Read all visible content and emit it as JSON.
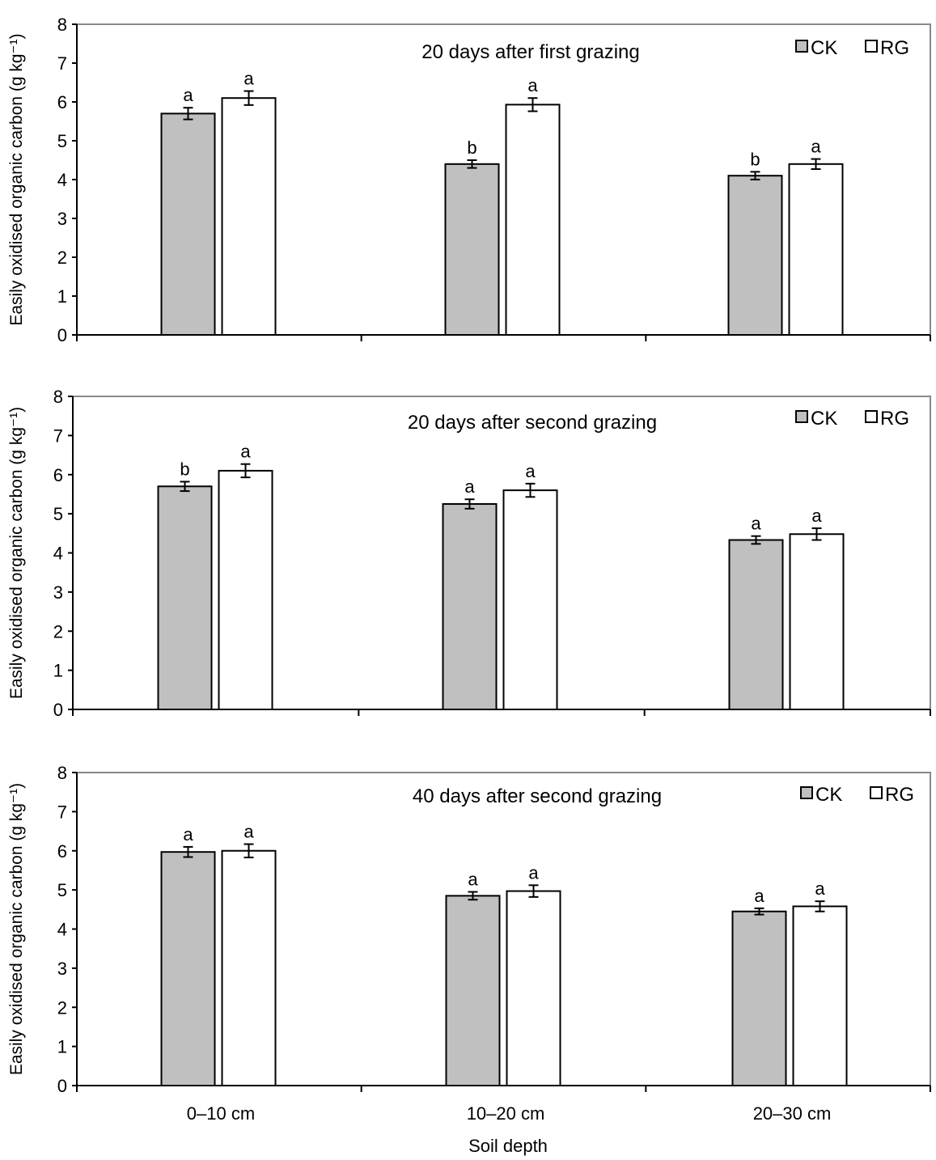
{
  "figure": {
    "xlabel": "Soil depth",
    "categories": [
      "0–10 cm",
      "10–20 cm",
      "20–30 cm"
    ]
  },
  "chart_data": [
    {
      "type": "bar",
      "title": "20 days after first grazing",
      "ylabel": "Easily oxidised organic carbon (g kg⁻¹)",
      "ylim": [
        0,
        8
      ],
      "yticks": [
        0,
        1,
        2,
        3,
        4,
        5,
        6,
        7,
        8
      ],
      "categories": [
        "0–10 cm",
        "10–20 cm",
        "20–30 cm"
      ],
      "legend_position": "top-right",
      "series": [
        {
          "name": "CK",
          "color": "#c0c0c0",
          "values": [
            5.7,
            4.4,
            4.1
          ],
          "errors": [
            0.15,
            0.1,
            0.1
          ],
          "letters": [
            "a",
            "b",
            "b"
          ]
        },
        {
          "name": "RG",
          "color": "#ffffff",
          "values": [
            6.1,
            5.93,
            4.4
          ],
          "errors": [
            0.18,
            0.17,
            0.13
          ],
          "letters": [
            "a",
            "a",
            "a"
          ]
        }
      ]
    },
    {
      "type": "bar",
      "title": "20 days after second grazing",
      "ylabel": "Easily oxidised organic carbon (g kg⁻¹)",
      "ylim": [
        0,
        8
      ],
      "yticks": [
        0,
        1,
        2,
        3,
        4,
        5,
        6,
        7,
        8
      ],
      "categories": [
        "0–10 cm",
        "10–20 cm",
        "20–30 cm"
      ],
      "legend_position": "top-right",
      "series": [
        {
          "name": "CK",
          "color": "#c0c0c0",
          "values": [
            5.7,
            5.25,
            4.33
          ],
          "errors": [
            0.12,
            0.12,
            0.1
          ],
          "letters": [
            "b",
            "a",
            "a"
          ]
        },
        {
          "name": "RG",
          "color": "#ffffff",
          "values": [
            6.1,
            5.6,
            4.48
          ],
          "errors": [
            0.17,
            0.17,
            0.15
          ],
          "letters": [
            "a",
            "a",
            "a"
          ]
        }
      ]
    },
    {
      "type": "bar",
      "title": "40 days after second grazing",
      "ylabel": "Easily oxidised organic carbon (g kg⁻¹)",
      "ylim": [
        0,
        8
      ],
      "yticks": [
        0,
        1,
        2,
        3,
        4,
        5,
        6,
        7,
        8
      ],
      "categories": [
        "0–10 cm",
        "10–20 cm",
        "20–30 cm"
      ],
      "legend_position": "top-right",
      "series": [
        {
          "name": "CK",
          "color": "#c0c0c0",
          "values": [
            5.97,
            4.85,
            4.45
          ],
          "errors": [
            0.13,
            0.1,
            0.08
          ],
          "letters": [
            "a",
            "a",
            "a"
          ]
        },
        {
          "name": "RG",
          "color": "#ffffff",
          "values": [
            6.0,
            4.97,
            4.58
          ],
          "errors": [
            0.17,
            0.15,
            0.13
          ],
          "letters": [
            "a",
            "a",
            "a"
          ]
        }
      ]
    }
  ]
}
